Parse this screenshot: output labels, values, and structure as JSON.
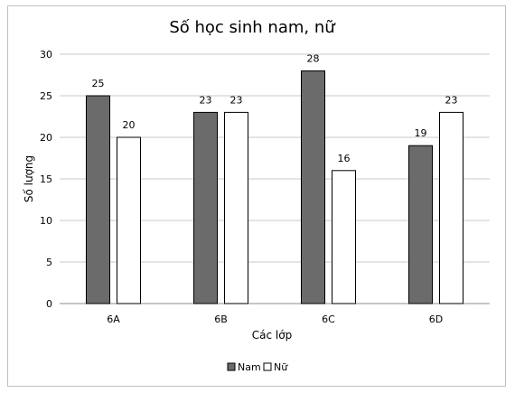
{
  "chart_data": {
    "type": "bar",
    "title": "Số học sinh nam, nữ",
    "xlabel": "Các lớp",
    "ylabel": "Số lượng",
    "categories": [
      "6A",
      "6B",
      "6C",
      "6D"
    ],
    "series": [
      {
        "name": "Nam",
        "values": [
          25,
          23,
          28,
          19
        ],
        "color": "#6b6b6b"
      },
      {
        "name": "Nữ",
        "values": [
          20,
          23,
          16,
          23
        ],
        "color": "#ffffff"
      }
    ],
    "ylim": [
      0,
      30
    ],
    "yticks": [
      0,
      5,
      10,
      15,
      20,
      25,
      30
    ],
    "grid": true,
    "legend_position": "bottom"
  }
}
